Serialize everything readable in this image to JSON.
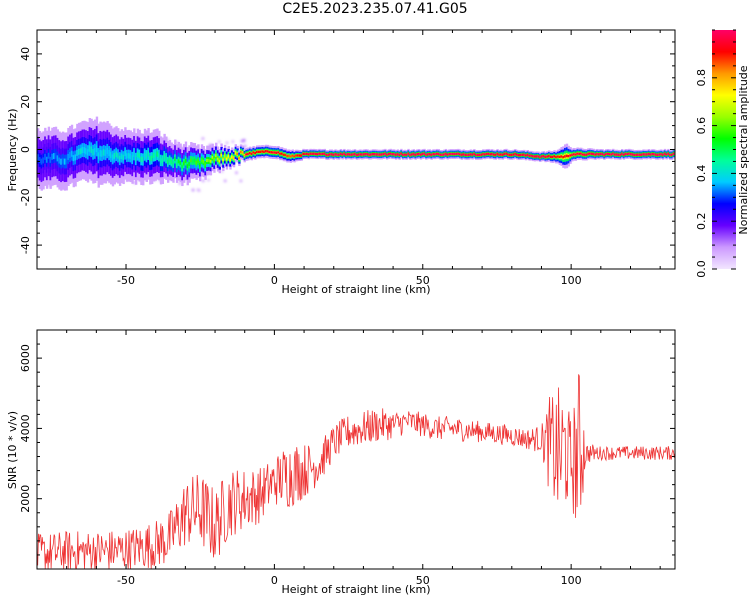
{
  "title": "C2E5.2023.235.07.41.G05",
  "chart_data": [
    {
      "type": "heatmap",
      "xlabel": "Height of straight line (km)",
      "ylabel": "Frequency (Hz)",
      "xlim": [
        -80,
        135
      ],
      "ylim": [
        -50,
        50
      ],
      "xticks": [
        -50,
        0,
        50,
        100
      ],
      "yticks": [
        -40,
        -20,
        0,
        20,
        40
      ],
      "colorbar": {
        "label": "Normalized spectral amplitude",
        "range": [
          0.0,
          1.0
        ],
        "ticks": [
          0.0,
          0.2,
          0.4,
          0.6,
          0.8
        ],
        "colors": [
          "#f2e6ff",
          "#cc99ff",
          "#6600ff",
          "#0000ff",
          "#00ccff",
          "#00ff99",
          "#00ff00",
          "#99ff00",
          "#ffff00",
          "#ff9900",
          "#ff0000",
          "#ff0066"
        ]
      },
      "ridge": {
        "x": [
          -80,
          -70,
          -65,
          -60,
          -50,
          -40,
          -35,
          -30,
          -25,
          -20,
          -15,
          -10,
          -5,
          0,
          5,
          10,
          20,
          40,
          60,
          80,
          90,
          95,
          98,
          100,
          110,
          120,
          135
        ],
        "freq": [
          -4,
          -4,
          -1,
          -1,
          -3,
          -3,
          -5,
          -6,
          -6,
          -4,
          -3,
          -2,
          -1,
          -1,
          -3,
          -2,
          -2,
          -2,
          -2,
          -2,
          -3,
          -3,
          -3,
          -2,
          -2,
          -2,
          -2
        ],
        "amplitude": [
          0.35,
          0.4,
          0.45,
          0.45,
          0.45,
          0.5,
          0.55,
          0.6,
          0.65,
          0.75,
          0.85,
          0.95,
          0.9,
          0.95,
          0.85,
          0.95,
          0.98,
          0.98,
          0.98,
          0.95,
          0.98,
          0.9,
          0.9,
          0.95,
          0.98,
          0.98,
          0.98
        ],
        "width_hz": [
          9,
          9,
          9,
          10,
          8,
          8,
          6,
          6,
          5,
          4,
          3,
          2,
          2,
          2,
          2,
          1.5,
          1.5,
          1.5,
          1.5,
          1.5,
          1.5,
          2,
          4,
          2,
          1.5,
          1.5,
          1.5
        ]
      },
      "grid": false
    },
    {
      "type": "line",
      "xlabel": "Height of straight line (km)",
      "ylabel": "SNR (10 * v/v)",
      "xlim": [
        -80,
        135
      ],
      "ylim": [
        0,
        6800
      ],
      "xticks": [
        -50,
        0,
        50,
        100
      ],
      "yticks": [
        2000,
        4000,
        6000
      ],
      "series": [
        {
          "color": "#ee3333",
          "x": [
            -80,
            -70,
            -60,
            -50,
            -40,
            -35,
            -30,
            -25,
            -20,
            -15,
            -10,
            -5,
            0,
            5,
            10,
            15,
            20,
            25,
            30,
            35,
            40,
            45,
            50,
            55,
            60,
            70,
            80,
            85,
            90,
            93,
            96,
            98,
            100,
            102,
            103,
            105,
            110,
            120,
            130,
            135
          ],
          "mean": [
            400,
            500,
            500,
            550,
            700,
            900,
            1600,
            1700,
            1200,
            1900,
            2000,
            2100,
            2500,
            2700,
            2800,
            3000,
            3600,
            3900,
            4000,
            4100,
            4100,
            4200,
            4100,
            4000,
            4000,
            3900,
            3800,
            3700,
            3700,
            3500,
            3200,
            3400,
            3000,
            3200,
            3500,
            3300,
            3300,
            3300,
            3300,
            3300
          ],
          "noise": [
            600,
            600,
            600,
            600,
            700,
            800,
            1000,
            1100,
            1100,
            1000,
            900,
            800,
            700,
            1000,
            800,
            600,
            500,
            500,
            500,
            500,
            400,
            350,
            350,
            350,
            350,
            300,
            300,
            300,
            400,
            1500,
            2000,
            1800,
            1200,
            2200,
            2500,
            300,
            200,
            200,
            200,
            200
          ]
        }
      ],
      "grid": false
    }
  ]
}
